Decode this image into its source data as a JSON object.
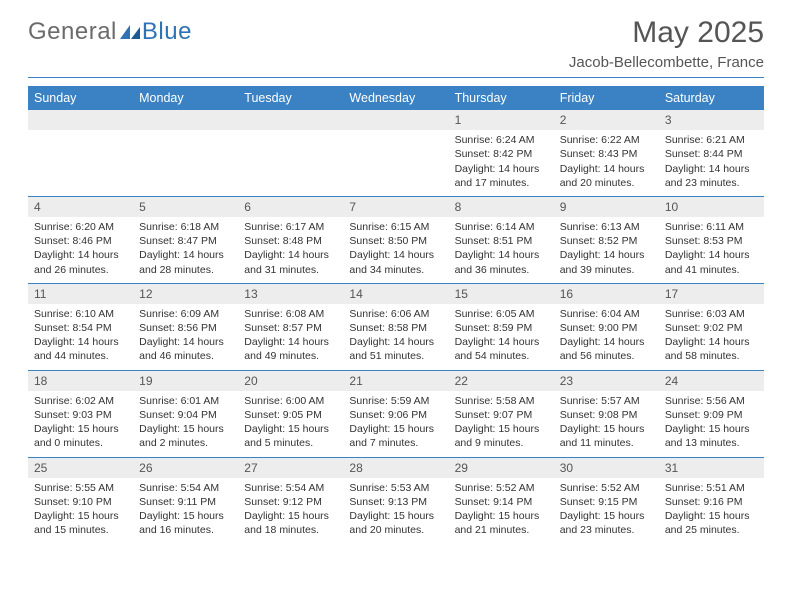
{
  "brand": {
    "part1": "General",
    "part2": "Blue"
  },
  "title": "May 2025",
  "subtitle": "Jacob-Bellecombette, France",
  "colors": {
    "header_bg": "#3a82c4",
    "header_text": "#ffffff",
    "rule": "#3a82c4",
    "daynum_bg": "#ededed",
    "text": "#333333",
    "logo_gray": "#6b6b6b",
    "logo_blue": "#2f73b5"
  },
  "typography": {
    "title_fontsize": 30,
    "subtitle_fontsize": 15,
    "dayheader_fontsize": 12.5,
    "body_fontsize": 10.5
  },
  "dayHeaders": [
    "Sunday",
    "Monday",
    "Tuesday",
    "Wednesday",
    "Thursday",
    "Friday",
    "Saturday"
  ],
  "weeks": [
    [
      null,
      null,
      null,
      null,
      {
        "n": "1",
        "sunrise": "6:24 AM",
        "sunset": "8:42 PM",
        "dlh": "14",
        "dlm": "17"
      },
      {
        "n": "2",
        "sunrise": "6:22 AM",
        "sunset": "8:43 PM",
        "dlh": "14",
        "dlm": "20"
      },
      {
        "n": "3",
        "sunrise": "6:21 AM",
        "sunset": "8:44 PM",
        "dlh": "14",
        "dlm": "23"
      }
    ],
    [
      {
        "n": "4",
        "sunrise": "6:20 AM",
        "sunset": "8:46 PM",
        "dlh": "14",
        "dlm": "26"
      },
      {
        "n": "5",
        "sunrise": "6:18 AM",
        "sunset": "8:47 PM",
        "dlh": "14",
        "dlm": "28"
      },
      {
        "n": "6",
        "sunrise": "6:17 AM",
        "sunset": "8:48 PM",
        "dlh": "14",
        "dlm": "31"
      },
      {
        "n": "7",
        "sunrise": "6:15 AM",
        "sunset": "8:50 PM",
        "dlh": "14",
        "dlm": "34"
      },
      {
        "n": "8",
        "sunrise": "6:14 AM",
        "sunset": "8:51 PM",
        "dlh": "14",
        "dlm": "36"
      },
      {
        "n": "9",
        "sunrise": "6:13 AM",
        "sunset": "8:52 PM",
        "dlh": "14",
        "dlm": "39"
      },
      {
        "n": "10",
        "sunrise": "6:11 AM",
        "sunset": "8:53 PM",
        "dlh": "14",
        "dlm": "41"
      }
    ],
    [
      {
        "n": "11",
        "sunrise": "6:10 AM",
        "sunset": "8:54 PM",
        "dlh": "14",
        "dlm": "44"
      },
      {
        "n": "12",
        "sunrise": "6:09 AM",
        "sunset": "8:56 PM",
        "dlh": "14",
        "dlm": "46"
      },
      {
        "n": "13",
        "sunrise": "6:08 AM",
        "sunset": "8:57 PM",
        "dlh": "14",
        "dlm": "49"
      },
      {
        "n": "14",
        "sunrise": "6:06 AM",
        "sunset": "8:58 PM",
        "dlh": "14",
        "dlm": "51"
      },
      {
        "n": "15",
        "sunrise": "6:05 AM",
        "sunset": "8:59 PM",
        "dlh": "14",
        "dlm": "54"
      },
      {
        "n": "16",
        "sunrise": "6:04 AM",
        "sunset": "9:00 PM",
        "dlh": "14",
        "dlm": "56"
      },
      {
        "n": "17",
        "sunrise": "6:03 AM",
        "sunset": "9:02 PM",
        "dlh": "14",
        "dlm": "58"
      }
    ],
    [
      {
        "n": "18",
        "sunrise": "6:02 AM",
        "sunset": "9:03 PM",
        "dlh": "15",
        "dlm": "0"
      },
      {
        "n": "19",
        "sunrise": "6:01 AM",
        "sunset": "9:04 PM",
        "dlh": "15",
        "dlm": "2"
      },
      {
        "n": "20",
        "sunrise": "6:00 AM",
        "sunset": "9:05 PM",
        "dlh": "15",
        "dlm": "5"
      },
      {
        "n": "21",
        "sunrise": "5:59 AM",
        "sunset": "9:06 PM",
        "dlh": "15",
        "dlm": "7"
      },
      {
        "n": "22",
        "sunrise": "5:58 AM",
        "sunset": "9:07 PM",
        "dlh": "15",
        "dlm": "9"
      },
      {
        "n": "23",
        "sunrise": "5:57 AM",
        "sunset": "9:08 PM",
        "dlh": "15",
        "dlm": "11"
      },
      {
        "n": "24",
        "sunrise": "5:56 AM",
        "sunset": "9:09 PM",
        "dlh": "15",
        "dlm": "13"
      }
    ],
    [
      {
        "n": "25",
        "sunrise": "5:55 AM",
        "sunset": "9:10 PM",
        "dlh": "15",
        "dlm": "15"
      },
      {
        "n": "26",
        "sunrise": "5:54 AM",
        "sunset": "9:11 PM",
        "dlh": "15",
        "dlm": "16"
      },
      {
        "n": "27",
        "sunrise": "5:54 AM",
        "sunset": "9:12 PM",
        "dlh": "15",
        "dlm": "18"
      },
      {
        "n": "28",
        "sunrise": "5:53 AM",
        "sunset": "9:13 PM",
        "dlh": "15",
        "dlm": "20"
      },
      {
        "n": "29",
        "sunrise": "5:52 AM",
        "sunset": "9:14 PM",
        "dlh": "15",
        "dlm": "21"
      },
      {
        "n": "30",
        "sunrise": "5:52 AM",
        "sunset": "9:15 PM",
        "dlh": "15",
        "dlm": "23"
      },
      {
        "n": "31",
        "sunrise": "5:51 AM",
        "sunset": "9:16 PM",
        "dlh": "15",
        "dlm": "25"
      }
    ]
  ],
  "labels": {
    "sunrise_prefix": "Sunrise: ",
    "sunset_prefix": "Sunset: ",
    "daylight_prefix": "Daylight: ",
    "hours_word": " hours",
    "and_word": "and ",
    "minutes_word": " minutes."
  }
}
